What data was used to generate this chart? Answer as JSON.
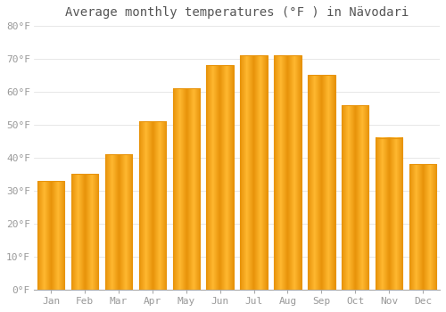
{
  "title": "Average monthly temperatures (°F ) in Nävodari",
  "months": [
    "Jan",
    "Feb",
    "Mar",
    "Apr",
    "May",
    "Jun",
    "Jul",
    "Aug",
    "Sep",
    "Oct",
    "Nov",
    "Dec"
  ],
  "values": [
    33,
    35,
    41,
    51,
    61,
    68,
    71,
    71,
    65,
    56,
    46,
    38
  ],
  "bar_color_light": "#FFB830",
  "bar_color_dark": "#E8930A",
  "background_color": "#FFFFFF",
  "grid_color": "#DDDDDD",
  "ylim": [
    0,
    80
  ],
  "yticks": [
    0,
    10,
    20,
    30,
    40,
    50,
    60,
    70,
    80
  ],
  "title_fontsize": 10,
  "tick_fontsize": 8,
  "tick_color": "#999999",
  "figsize": [
    5.0,
    3.5
  ],
  "dpi": 100
}
